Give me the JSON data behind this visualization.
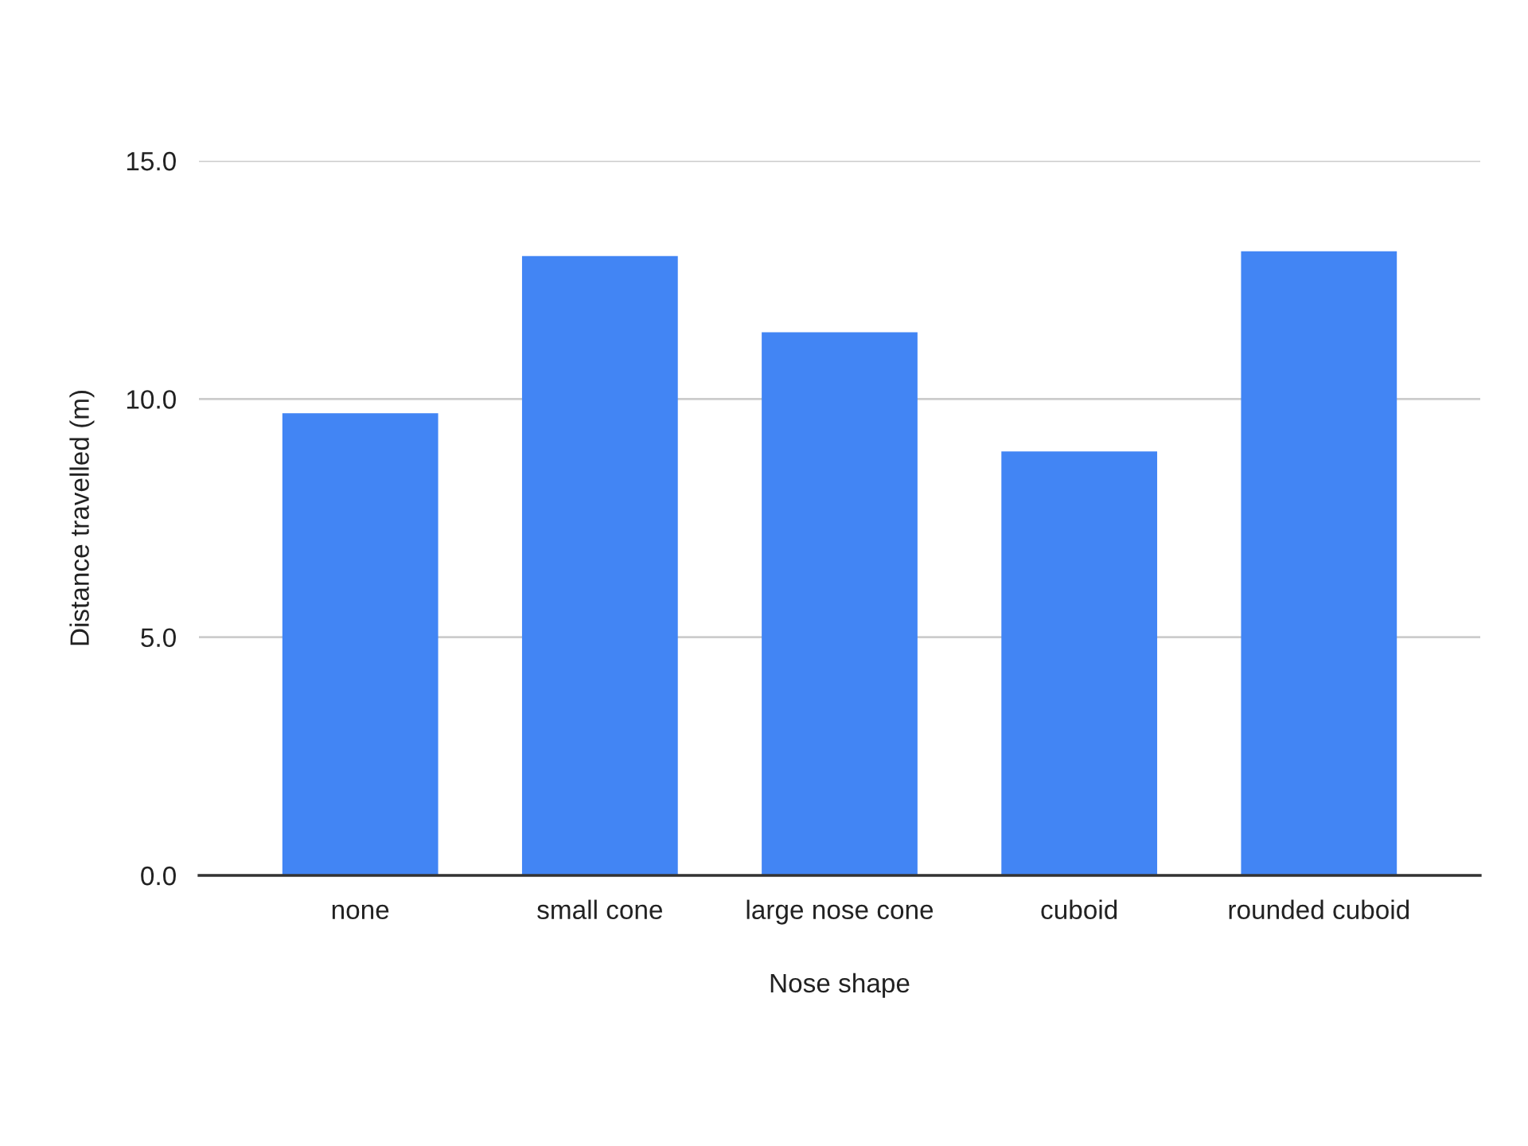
{
  "chart_data": {
    "type": "bar",
    "xlabel": "Nose shape",
    "ylabel": "Distance travelled (m)",
    "categories": [
      "none",
      "small cone",
      "large nose cone",
      "cuboid",
      "rounded cuboid"
    ],
    "values": [
      9.7,
      13.0,
      11.4,
      8.9,
      13.1
    ],
    "color": "#4285f4",
    "ylim": [
      0,
      15
    ],
    "yticks": [
      {
        "value": 0,
        "label": "0.0"
      },
      {
        "value": 5,
        "label": "5.0"
      },
      {
        "value": 10,
        "label": "10.0"
      },
      {
        "value": 15,
        "label": "15.0"
      }
    ],
    "grid": "y",
    "legend": false
  }
}
